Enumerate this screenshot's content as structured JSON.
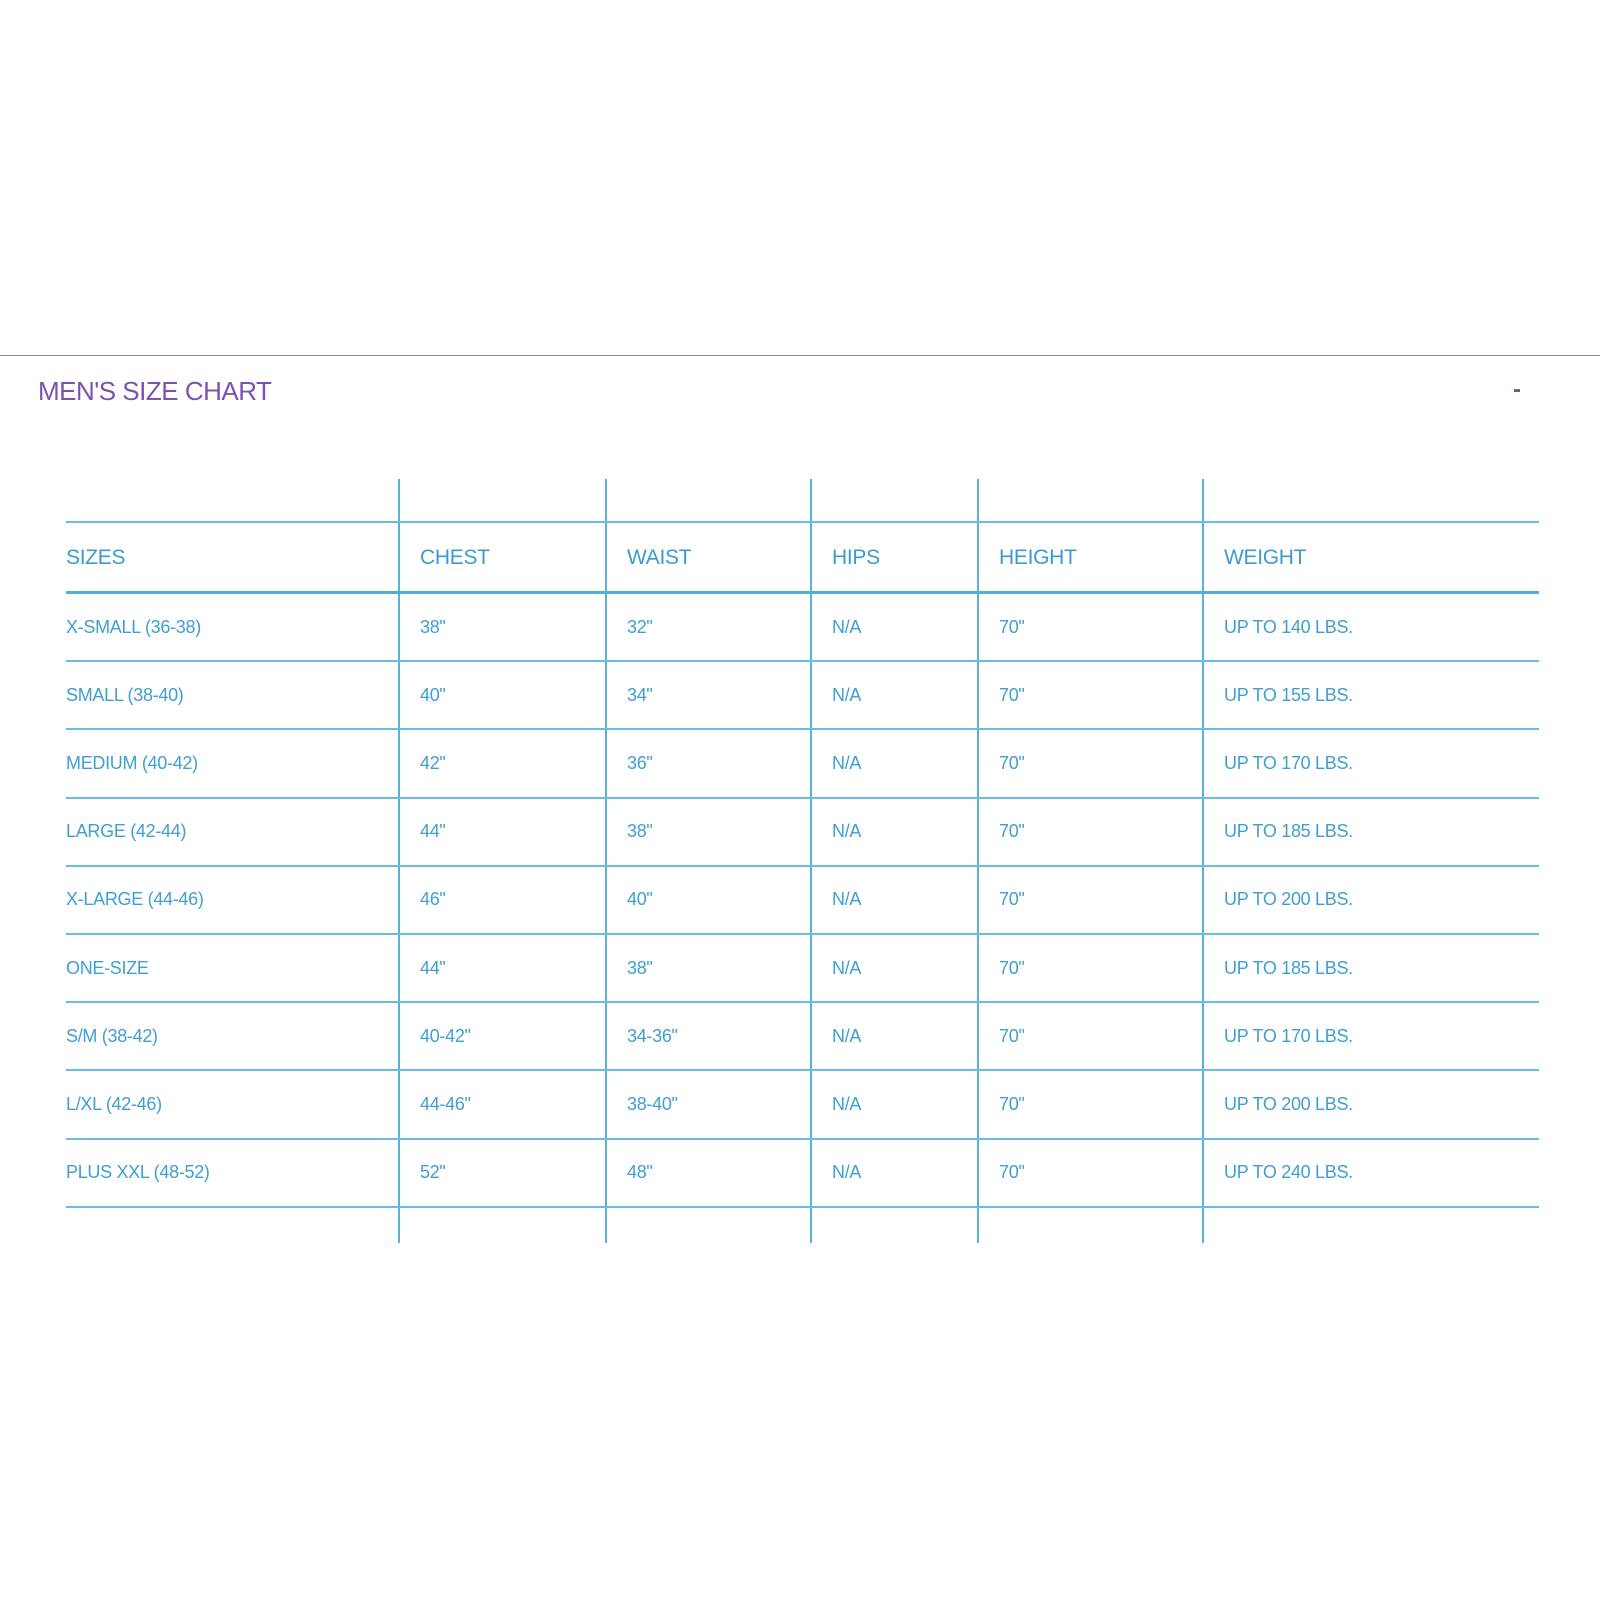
{
  "title": "MEN'S SIZE CHART",
  "collapse_label": "-",
  "colors": {
    "title": "#7b52b3",
    "text": "#3f9fd2",
    "lines": "#5ab2d6"
  },
  "table": {
    "headers": [
      "SIZES",
      "CHEST",
      "WAIST",
      "HIPS",
      "HEIGHT",
      "WEIGHT"
    ],
    "rows": [
      [
        "X-SMALL (36-38)",
        "38\"",
        "32\"",
        "N/A",
        "70\"",
        "UP TO 140 LBS."
      ],
      [
        "SMALL (38-40)",
        "40\"",
        "34\"",
        "N/A",
        "70\"",
        "UP TO 155 LBS."
      ],
      [
        "MEDIUM (40-42)",
        "42\"",
        "36\"",
        "N/A",
        "70\"",
        "UP TO 170 LBS."
      ],
      [
        "LARGE (42-44)",
        "44\"",
        "38\"",
        "N/A",
        "70\"",
        "UP TO 185 LBS."
      ],
      [
        "X-LARGE (44-46)",
        "46\"",
        "40\"",
        "N/A",
        "70\"",
        "UP TO 200 LBS."
      ],
      [
        "ONE-SIZE",
        "44\"",
        "38\"",
        "N/A",
        "70\"",
        "UP TO 185 LBS."
      ],
      [
        "S/M (38-42)",
        "40-42\"",
        "34-36\"",
        "N/A",
        "70\"",
        "UP TO 170 LBS."
      ],
      [
        "L/XL (42-46)",
        "44-46\"",
        "38-40\"",
        "N/A",
        "70\"",
        "UP TO 200 LBS."
      ],
      [
        "PLUS XXL (48-52)",
        "52\"",
        "48\"",
        "N/A",
        "70\"",
        "UP TO 240 LBS."
      ]
    ]
  }
}
